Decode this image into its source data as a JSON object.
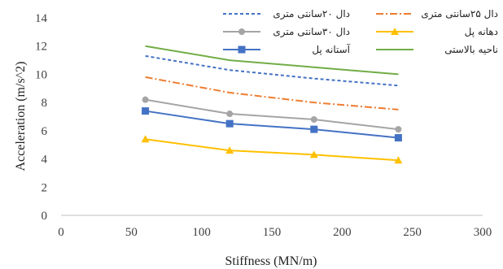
{
  "chart_data": {
    "type": "line",
    "xlabel": "Stiffness (MN/m)",
    "ylabel": "Acceleration (m/s^2)",
    "xlim": [
      0,
      300
    ],
    "ylim": [
      0,
      14
    ],
    "xticks": [
      0,
      50,
      100,
      150,
      200,
      250,
      300
    ],
    "yticks": [
      0,
      2,
      4,
      6,
      8,
      10,
      12,
      14
    ],
    "grid": false,
    "legend_position": "top",
    "series": [
      {
        "name": "دال ۲۰سانتی متری",
        "x": [
          60,
          120,
          180,
          240
        ],
        "y": [
          11.3,
          10.3,
          9.7,
          9.2
        ],
        "color": "#4472C4",
        "line": "dashed",
        "marker": "none"
      },
      {
        "name": "دال ۲۵سانتی متری",
        "x": [
          60,
          120,
          180,
          240
        ],
        "y": [
          9.8,
          8.7,
          8.0,
          7.5
        ],
        "color": "#ED7D31",
        "line": "dashdot",
        "marker": "none"
      },
      {
        "name": "دال ۳۰سانتی متری",
        "x": [
          60,
          120,
          180,
          240
        ],
        "y": [
          8.2,
          7.2,
          6.8,
          6.1
        ],
        "color": "#A5A5A5",
        "line": "solid",
        "marker": "circle"
      },
      {
        "name": "دهانه پل",
        "x": [
          60,
          120,
          180,
          240
        ],
        "y": [
          5.4,
          4.6,
          4.3,
          3.9
        ],
        "color": "#FFC000",
        "line": "solid",
        "marker": "triangle"
      },
      {
        "name": "آستانه پل",
        "x": [
          60,
          120,
          180,
          240
        ],
        "y": [
          7.4,
          6.5,
          6.1,
          5.5
        ],
        "color": "#4472C4",
        "line": "solid",
        "marker": "square"
      },
      {
        "name": "ناحیه بالاستی",
        "x": [
          60,
          120,
          180,
          240
        ],
        "y": [
          12.0,
          11.0,
          10.5,
          10.0
        ],
        "color": "#70AD47",
        "line": "solid",
        "marker": "none"
      }
    ]
  }
}
